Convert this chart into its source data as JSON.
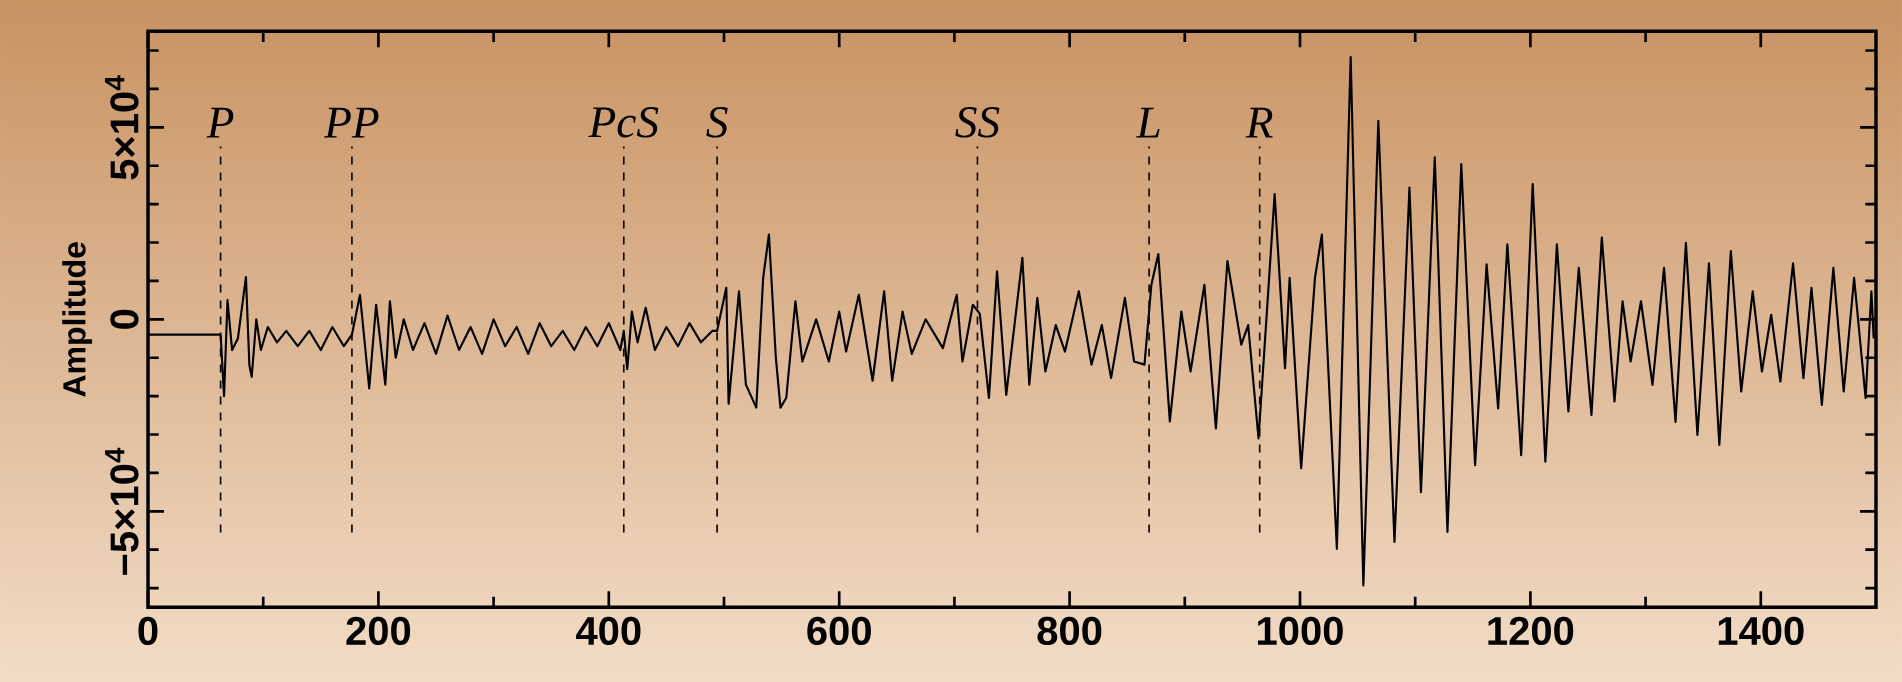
{
  "chart_data": {
    "type": "line",
    "ylabel": "Amplitude",
    "xlim": [
      0,
      1500
    ],
    "ylim": [
      -75000,
      75000
    ],
    "xticks": [
      0,
      {
        "value": 100,
        "label": null
      },
      200,
      {
        "value": 300,
        "label": null
      },
      400,
      {
        "value": 500,
        "label": null
      },
      600,
      {
        "value": 700,
        "label": null
      },
      800,
      {
        "value": 900,
        "label": null
      },
      1000,
      {
        "value": 1100,
        "label": null
      },
      1200,
      {
        "value": 1300,
        "label": null
      },
      1400
    ],
    "yticks": [
      {
        "value": -70000,
        "label": null
      },
      {
        "value": -60000,
        "label": null
      },
      {
        "value": -50000,
        "label": "−5×10$^{4}$"
      },
      {
        "value": -40000,
        "label": null
      },
      {
        "value": -30000,
        "label": null
      },
      {
        "value": -20000,
        "label": null
      },
      {
        "value": -10000,
        "label": null
      },
      0,
      {
        "value": 10000,
        "label": null
      },
      {
        "value": 20000,
        "label": null
      },
      {
        "value": 30000,
        "label": null
      },
      {
        "value": 40000,
        "label": null
      },
      {
        "value": 50000,
        "label": "5×10$^{4}$"
      },
      {
        "value": 60000,
        "label": null
      },
      {
        "value": 70000,
        "label": null
      }
    ],
    "grid": false,
    "marker": "none",
    "line_style": "solid",
    "ref_lines": [
      {
        "axis": "x",
        "value": 63,
        "label": "P",
        "line_style": "dashed"
      },
      {
        "axis": "x",
        "value": 177,
        "label": "PP",
        "line_style": "dashed"
      },
      {
        "axis": "x",
        "value": 413,
        "label": "PcS",
        "line_style": "dashed"
      },
      {
        "axis": "x",
        "value": 494,
        "label": "S",
        "line_style": "dashed"
      },
      {
        "axis": "x",
        "value": 720,
        "label": "SS",
        "line_style": "dashed"
      },
      {
        "axis": "x",
        "value": 869,
        "label": "L",
        "line_style": "dashed"
      },
      {
        "axis": "x",
        "value": 965,
        "label": "R",
        "line_style": "dashed"
      }
    ],
    "series": [
      {
        "color": "#000000",
        "x": [
          0,
          60,
          63,
          66,
          69,
          73,
          78,
          85,
          88,
          90,
          94,
          98,
          104,
          112,
          120,
          130,
          140,
          150,
          160,
          170,
          177,
          184,
          192,
          198,
          206,
          210,
          215,
          222,
          230,
          240,
          250,
          260,
          270,
          280,
          290,
          300,
          310,
          320,
          330,
          340,
          350,
          360,
          370,
          380,
          390,
          400,
          410,
          413,
          416,
          420,
          425,
          432,
          440,
          450,
          460,
          470,
          480,
          490,
          494,
          502,
          504,
          513,
          519,
          528,
          534,
          539,
          545,
          549,
          554,
          562,
          568,
          580,
          591,
          600,
          606,
          617,
          629,
          639,
          646,
          655,
          663,
          675,
          690,
          702,
          707,
          716,
          722,
          730,
          737,
          745,
          759,
          765,
          772,
          779,
          788,
          796,
          808,
          819,
          828,
          836,
          848,
          856,
          865,
          871,
          877,
          887,
          897,
          905,
          917,
          927,
          937,
          949,
          955,
          964,
          978,
          987,
          991,
          1001,
          1013,
          1019,
          1032,
          1044,
          1055,
          1068,
          1082,
          1095,
          1105,
          1117,
          1128,
          1140,
          1152,
          1162,
          1172,
          1180,
          1192,
          1202,
          1213,
          1223,
          1233,
          1242,
          1253,
          1262,
          1273,
          1280,
          1287,
          1296,
          1306,
          1316,
          1326,
          1335,
          1345,
          1355,
          1364,
          1374,
          1383,
          1393,
          1401,
          1409,
          1417,
          1428,
          1437,
          1444,
          1453,
          1463,
          1472,
          1481,
          1491,
          1496,
          1498
        ],
        "values": [
          -4000,
          -4000,
          -4000,
          -20000,
          5000,
          -8000,
          -5000,
          11000,
          -12000,
          -15000,
          0,
          -8000,
          -2000,
          -6000,
          -3000,
          -7000,
          -3000,
          -8000,
          -2000,
          -7000,
          -4000,
          6400,
          -18000,
          3800,
          -17000,
          4700,
          -10000,
          0,
          -8000,
          -1000,
          -9000,
          1000,
          -8000,
          -2000,
          -9000,
          0,
          -7000,
          -2000,
          -9000,
          -1000,
          -7000,
          -3000,
          -8000,
          -2000,
          -7000,
          -1000,
          -8000,
          -3000,
          -13000,
          2000,
          -6000,
          3000,
          -8000,
          -2000,
          -7000,
          -1000,
          -6000,
          -3000,
          -3000,
          8200,
          -22000,
          7300,
          -17000,
          -23000,
          10800,
          22100,
          -10000,
          -23000,
          -20500,
          4700,
          -11000,
          0,
          -11000,
          2000,
          -8400,
          6400,
          -16000,
          7300,
          -16000,
          2000,
          -9000,
          0,
          -7500,
          6400,
          -11000,
          3800,
          1500,
          -20500,
          12500,
          -19700,
          16000,
          -17000,
          5600,
          -13600,
          -1500,
          -8400,
          7300,
          -11800,
          -1500,
          -15300,
          5600,
          -11000,
          -11800,
          9000,
          17000,
          -26600,
          2000,
          -13600,
          9000,
          -28400,
          15200,
          -6600,
          -1500,
          -31000,
          32600,
          -12700,
          10800,
          -38800,
          10800,
          22100,
          -59800,
          68300,
          -69300,
          51700,
          -58000,
          34300,
          -45000,
          42200,
          -55400,
          40400,
          -38000,
          14300,
          -23200,
          19500,
          -35400,
          35200,
          -37100,
          19500,
          -24000,
          13400,
          -24900,
          21300,
          -21400,
          4700,
          -11000,
          4700,
          -17100,
          13400,
          -26700,
          19900,
          -30100,
          14600,
          -32700,
          17800,
          -18800,
          7300,
          -13600,
          1200,
          -16200,
          14600,
          -15300,
          8200,
          -22300,
          13400,
          -18800,
          10800,
          -20500,
          7300,
          -5000
        ]
      }
    ]
  }
}
